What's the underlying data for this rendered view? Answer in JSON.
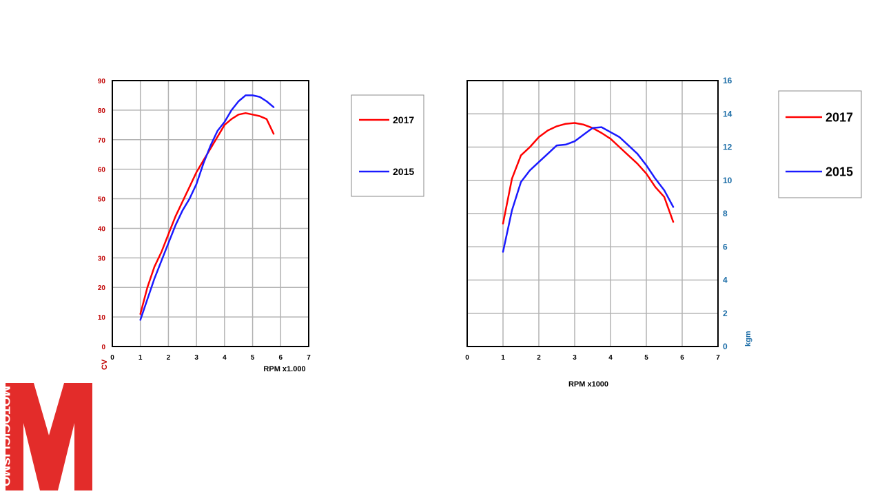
{
  "colors": {
    "series_2017": "#ff0000",
    "series_2015": "#1a1aff",
    "power_axis": "#c00000",
    "torque_axis": "#1f6fa8",
    "grid": "#b3b3b3",
    "logo": "#e32c2a"
  },
  "logo": {
    "text": "MOTOCICLISMO",
    "icon": "motociclismo-m-logo"
  },
  "chart_data": [
    {
      "type": "line",
      "xlabel": "RPM  x1.000",
      "ylabel": "CV",
      "xlim": [
        0,
        7
      ],
      "ylim": [
        0,
        90
      ],
      "x_ticks": [
        0,
        1,
        2,
        3,
        4,
        5,
        6,
        7
      ],
      "y_ticks": [
        0,
        10,
        20,
        30,
        40,
        50,
        60,
        70,
        80,
        90
      ],
      "grid": true,
      "legend_position": "right",
      "series": [
        {
          "name": "2017",
          "x": [
            1,
            1.25,
            1.5,
            1.75,
            2,
            2.25,
            2.5,
            2.75,
            3,
            3.25,
            3.5,
            3.75,
            4,
            4.25,
            4.5,
            4.75,
            5,
            5.25,
            5.5,
            5.75
          ],
          "values": [
            11,
            20,
            27,
            32,
            38,
            44,
            49,
            54,
            59,
            63,
            67,
            71,
            75,
            77,
            78.5,
            79,
            78.5,
            78,
            77,
            72
          ]
        },
        {
          "name": "2015",
          "x": [
            1,
            1.25,
            1.5,
            1.75,
            2,
            2.25,
            2.5,
            2.75,
            3,
            3.25,
            3.5,
            3.75,
            4,
            4.25,
            4.5,
            4.75,
            5,
            5.25,
            5.5,
            5.75
          ],
          "values": [
            9,
            16,
            23,
            29,
            35,
            41,
            46,
            50,
            55,
            62,
            68,
            73,
            76,
            80,
            83,
            85,
            85,
            84.5,
            83,
            81
          ]
        }
      ]
    },
    {
      "type": "line",
      "xlabel": "RPM  x1000",
      "ylabel": "kgm",
      "xlim": [
        0,
        7
      ],
      "ylim": [
        0,
        16
      ],
      "x_ticks": [
        0,
        1,
        2,
        3,
        4,
        5,
        6,
        7
      ],
      "y_ticks": [
        0,
        2,
        4,
        6,
        8,
        10,
        12,
        14,
        16
      ],
      "grid": true,
      "legend_position": "right",
      "series": [
        {
          "name": "2017",
          "x": [
            1,
            1.25,
            1.5,
            1.75,
            2,
            2.25,
            2.5,
            2.75,
            3,
            3.25,
            3.5,
            3.75,
            4,
            4.25,
            4.5,
            4.75,
            5,
            5.25,
            5.5,
            5.75
          ],
          "values": [
            7.4,
            10.1,
            11.5,
            12,
            12.6,
            13,
            13.25,
            13.4,
            13.45,
            13.35,
            13.15,
            12.85,
            12.5,
            12,
            11.5,
            11,
            10.4,
            9.6,
            9,
            7.5
          ]
        },
        {
          "name": "2015",
          "x": [
            1,
            1.25,
            1.5,
            1.75,
            2,
            2.25,
            2.5,
            2.75,
            3,
            3.25,
            3.5,
            3.75,
            4,
            4.25,
            4.5,
            4.75,
            5,
            5.25,
            5.5,
            5.75
          ],
          "values": [
            5.7,
            8.2,
            9.9,
            10.6,
            11.1,
            11.6,
            12.1,
            12.15,
            12.35,
            12.75,
            13.15,
            13.2,
            12.9,
            12.6,
            12.1,
            11.6,
            10.9,
            10.1,
            9.4,
            8.4
          ]
        }
      ]
    }
  ]
}
